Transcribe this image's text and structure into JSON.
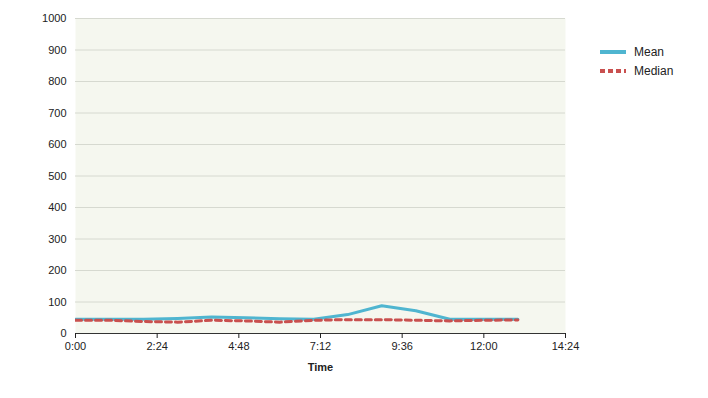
{
  "chart_data": {
    "type": "line",
    "x_label": "Time",
    "x": [
      0,
      60,
      120,
      180,
      240,
      300,
      360,
      420,
      480,
      540,
      600,
      660,
      720,
      780
    ],
    "xlim": [
      0,
      864
    ],
    "xticks": [
      {
        "value": 0,
        "label": "0:00"
      },
      {
        "value": 144,
        "label": "2:24"
      },
      {
        "value": 288,
        "label": "4:48"
      },
      {
        "value": 432,
        "label": "7:12"
      },
      {
        "value": 576,
        "label": "9:36"
      },
      {
        "value": 720,
        "label": "12:00"
      },
      {
        "value": 864,
        "label": "14:24"
      }
    ],
    "ylim": [
      0,
      1000
    ],
    "yticks": [
      0,
      100,
      200,
      300,
      400,
      500,
      600,
      700,
      800,
      900,
      1000
    ],
    "grid": true,
    "legend": "right",
    "series": [
      {
        "name": "Mean",
        "color": "#4fb5d0",
        "line_style": "solid",
        "values": [
          45,
          45,
          45,
          48,
          52,
          50,
          47,
          45,
          60,
          88,
          72,
          45,
          45,
          45
        ]
      },
      {
        "name": "Median",
        "color": "#c9504f",
        "line_style": "dashed",
        "values": [
          42,
          42,
          38,
          36,
          42,
          40,
          36,
          42,
          44,
          44,
          42,
          40,
          42,
          43
        ]
      }
    ]
  }
}
